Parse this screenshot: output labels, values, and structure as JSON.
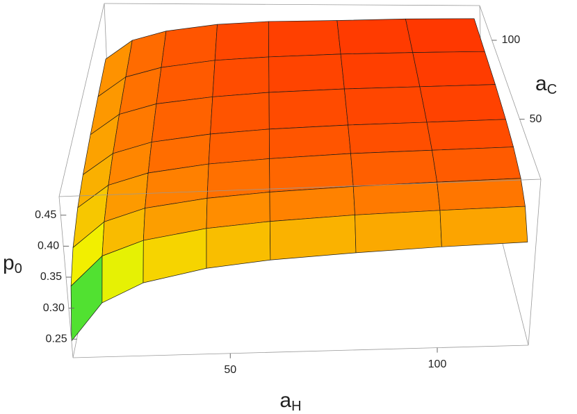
{
  "chart_data": {
    "type": "surface3d",
    "xlabel": {
      "main": "a",
      "sub": "H"
    },
    "ylabel": {
      "main": "a",
      "sub": "C"
    },
    "zlabel": {
      "main": "p",
      "sub": "0"
    },
    "x": [
      12,
      20,
      30,
      45,
      60,
      80,
      100,
      120
    ],
    "y": [
      12,
      20,
      30,
      45,
      60,
      80,
      100,
      120
    ],
    "z": [
      [
        0.247,
        0.307,
        0.337,
        0.357,
        0.367,
        0.374,
        0.379,
        0.382
      ],
      [
        0.313,
        0.36,
        0.383,
        0.399,
        0.407,
        0.413,
        0.416,
        0.418
      ],
      [
        0.347,
        0.387,
        0.407,
        0.42,
        0.427,
        0.432,
        0.435,
        0.437
      ],
      [
        0.369,
        0.404,
        0.422,
        0.434,
        0.44,
        0.445,
        0.447,
        0.449
      ],
      [
        0.38,
        0.413,
        0.43,
        0.441,
        0.447,
        0.451,
        0.453,
        0.455
      ],
      [
        0.388,
        0.42,
        0.436,
        0.446,
        0.452,
        0.456,
        0.458,
        0.46
      ],
      [
        0.393,
        0.424,
        0.439,
        0.45,
        0.455,
        0.459,
        0.461,
        0.462
      ],
      [
        0.397,
        0.427,
        0.442,
        0.453,
        0.458,
        0.46,
        0.463,
        0.464
      ]
    ],
    "xlim": [
      12,
      122
    ],
    "ylim": [
      12,
      122
    ],
    "zlim": [
      0.22,
      0.48
    ],
    "xticks": [
      50,
      100
    ],
    "yticks": [
      50,
      100
    ],
    "zticks": [
      {
        "value": 0.25,
        "label": "0.25"
      },
      {
        "value": 0.3,
        "label": "0.30"
      },
      {
        "value": 0.35,
        "label": "0.35"
      },
      {
        "value": 0.4,
        "label": "0.40"
      },
      {
        "value": 0.45,
        "label": "0.45"
      }
    ],
    "colormap": [
      "#0a2a8a",
      "#00d84a",
      "#f2f200",
      "#ff8a00",
      "#ff1a00"
    ],
    "mesh_color": "#1a1a1a"
  }
}
